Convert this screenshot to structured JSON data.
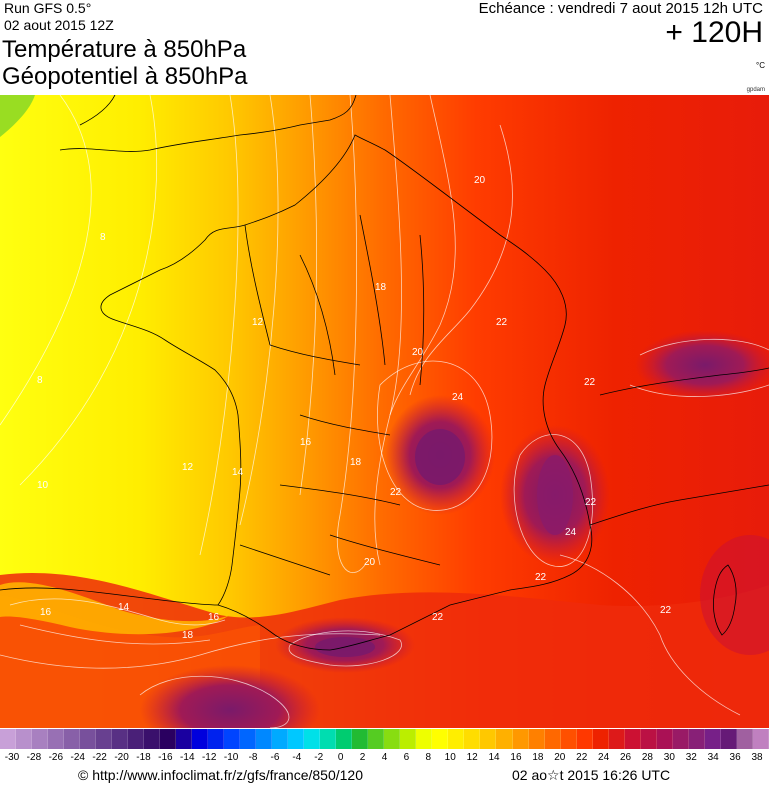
{
  "header": {
    "run": "Run GFS 0.5°",
    "run_date": "02 aout 2015 12Z",
    "title_line1": "Température à 850hPa",
    "title_line2": "Géopotentiel à 850hPa",
    "echeance": "Echéance : vendredi 7 aout 2015 12h UTC",
    "lead_time": "+ 120H",
    "unit": "°C",
    "credit_small": "gpdam"
  },
  "map": {
    "isotherm_labels": [
      "8",
      "8",
      "10",
      "12",
      "12",
      "14",
      "16",
      "16",
      "18",
      "18",
      "20",
      "20",
      "20",
      "22",
      "22",
      "22",
      "22",
      "22",
      "22",
      "22",
      "24",
      "24",
      "14",
      "16",
      "18"
    ],
    "colors": {
      "yellow": "#ffff00",
      "yellow_orange": "#ffdd00",
      "orange_light": "#ffaa00",
      "orange": "#ff8800",
      "red_orange": "#ff5500",
      "red": "#ee2200",
      "dark_red": "#cc1133",
      "purple": "#8a1a6a",
      "green": "#99dd22"
    }
  },
  "colorbar": {
    "ticks": [
      "-30",
      "-28",
      "-26",
      "-24",
      "-22",
      "-20",
      "-18",
      "-16",
      "-14",
      "-12",
      "-10",
      "-8",
      "-6",
      "-4",
      "-2",
      "0",
      "2",
      "4",
      "6",
      "8",
      "10",
      "12",
      "14",
      "16",
      "18",
      "20",
      "22",
      "24",
      "26",
      "28",
      "30",
      "32",
      "34",
      "36",
      "38"
    ],
    "swatches": [
      "#c8a0d8",
      "#b890cc",
      "#a880c0",
      "#9870b4",
      "#8860a8",
      "#78509c",
      "#684090",
      "#583084",
      "#4a2078",
      "#3a106c",
      "#2a0060",
      "#1a00a0",
      "#0000dd",
      "#0022ee",
      "#0044ff",
      "#0066ff",
      "#0088ff",
      "#00aaff",
      "#00c8ff",
      "#00e0e8",
      "#00ddb0",
      "#00cc70",
      "#22bb33",
      "#55cc22",
      "#88dd11",
      "#bbee00",
      "#eeff00",
      "#ffff00",
      "#ffee00",
      "#ffdd00",
      "#ffc800",
      "#ffb000",
      "#ff9800",
      "#ff8000",
      "#ff6800",
      "#ff5000",
      "#ff3800",
      "#ee2200",
      "#dd1a1a",
      "#cc1133",
      "#bb1144",
      "#aa1155",
      "#991a66",
      "#882077",
      "#772088",
      "#661a77",
      "#a060a0",
      "#c080c0"
    ]
  },
  "footer": {
    "url": "© http://www.infoclimat.fr/z/gfs/france/850/120",
    "timestamp": "02 ao☆t 2015 16:26 UTC"
  }
}
